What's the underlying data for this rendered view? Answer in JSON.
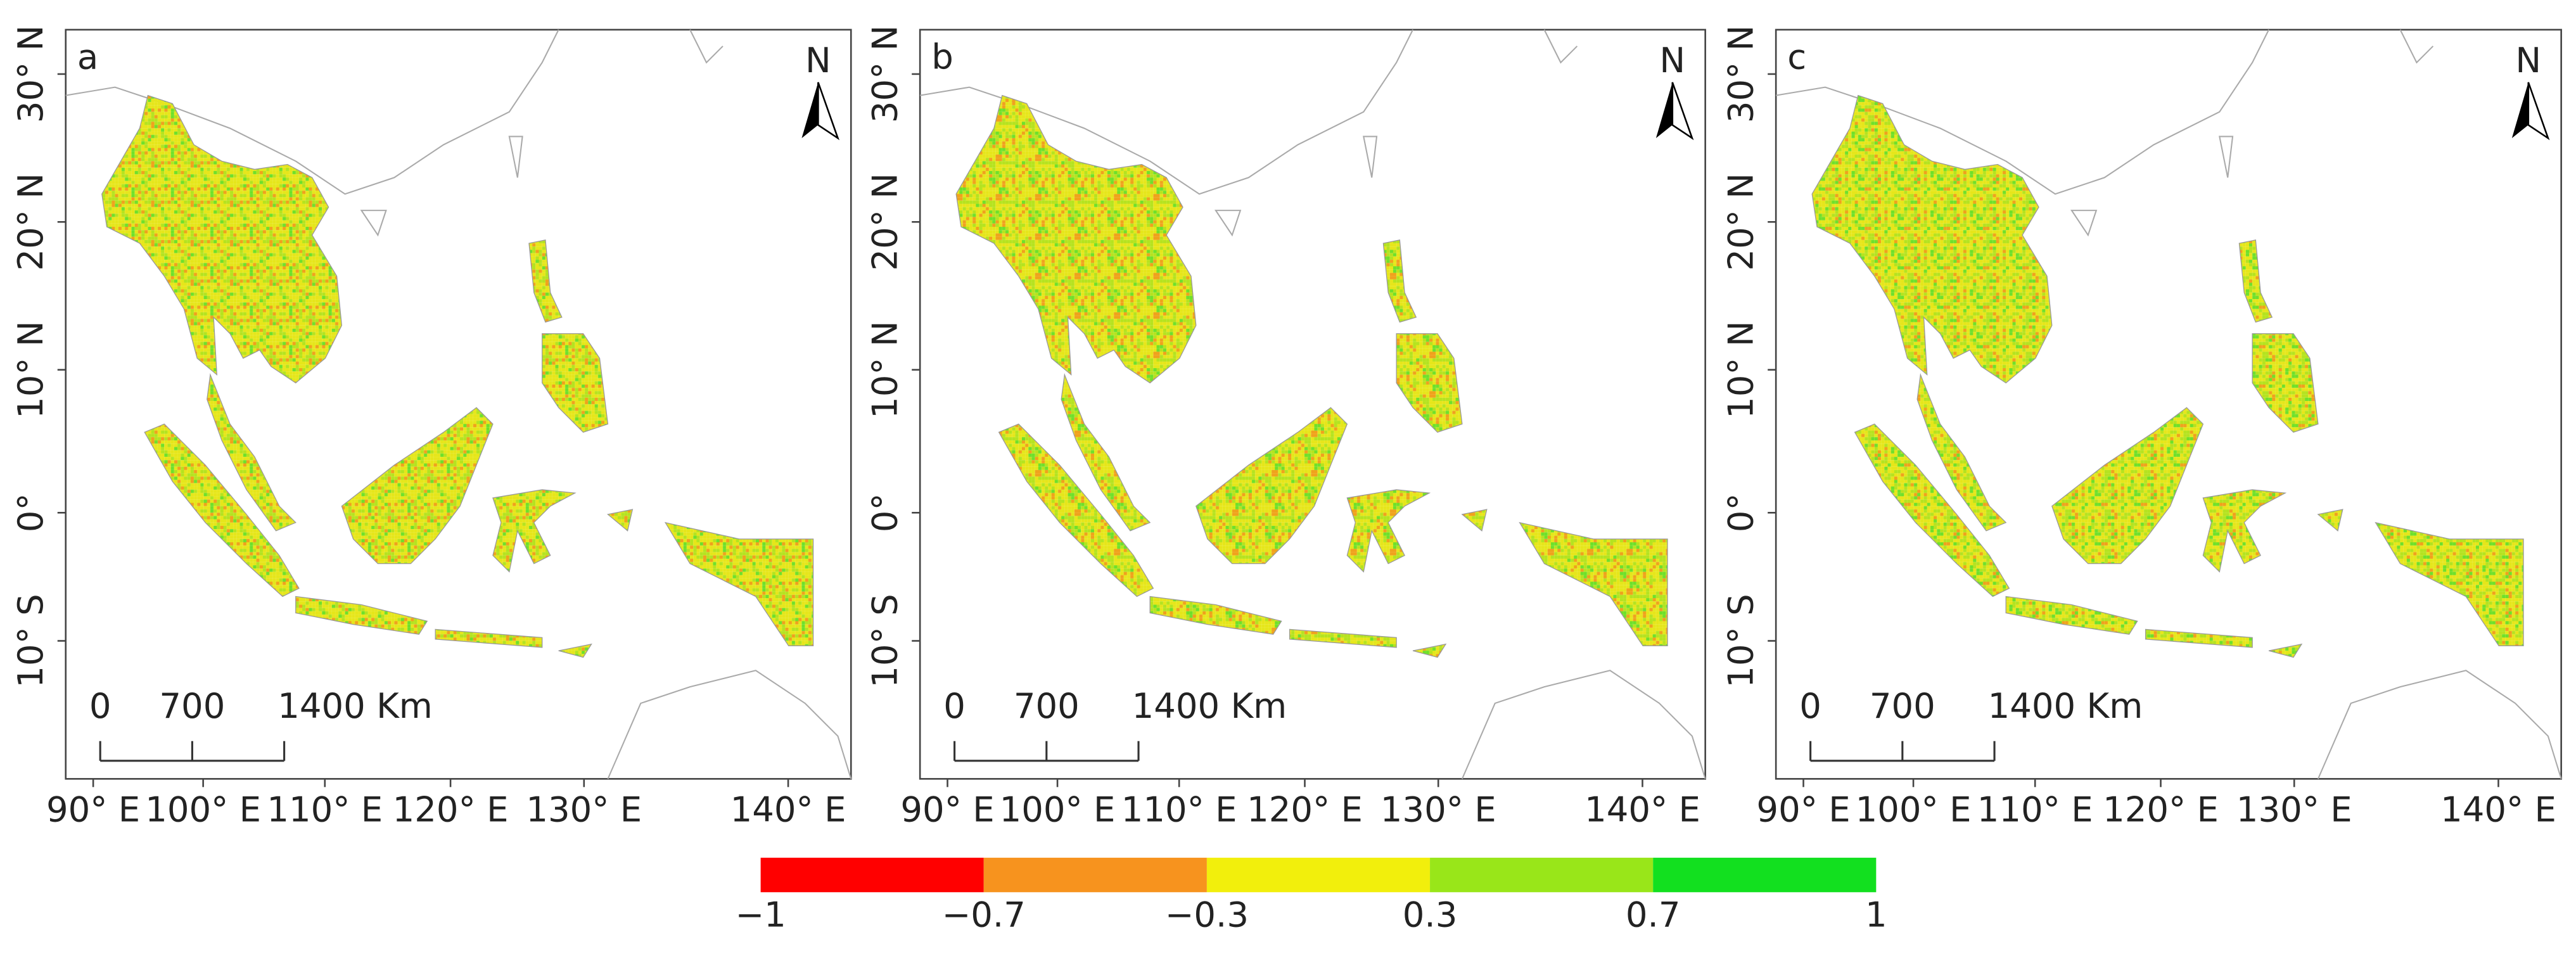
{
  "panels": [
    {
      "label": "a",
      "north": "N",
      "latitude_labels": [
        "30° N",
        "20° N",
        "10° N",
        "0°",
        "10° S"
      ],
      "longitude_labels": [
        "90° E",
        "100° E",
        "110° E",
        "120° E",
        "130° E",
        "140° E"
      ],
      "scale_bar": [
        "0",
        "700",
        "1400 Km"
      ]
    },
    {
      "label": "b",
      "north": "N",
      "latitude_labels": [
        "30° N",
        "20° N",
        "10° N",
        "0°",
        "10° S"
      ],
      "longitude_labels": [
        "90° E",
        "100° E",
        "110° E",
        "120° E",
        "130° E",
        "140° E"
      ],
      "scale_bar": [
        "0",
        "700",
        "1400 Km"
      ]
    },
    {
      "label": "c",
      "north": "N",
      "latitude_labels": [
        "30° N",
        "20° N",
        "10° N",
        "0°",
        "10° S"
      ],
      "longitude_labels": [
        "90° E",
        "100° E",
        "110° E",
        "120° E",
        "130° E",
        "140° E"
      ],
      "scale_bar": [
        "0",
        "700",
        "1400 Km"
      ]
    }
  ],
  "legend": {
    "labels": [
      "−1",
      "−0.7",
      "−0.3",
      "0.3",
      "0.7",
      "1"
    ],
    "colors": [
      "#ff0000",
      "#f7931e",
      "#f2ef0c",
      "#99e619",
      "#12e01f"
    ]
  }
}
